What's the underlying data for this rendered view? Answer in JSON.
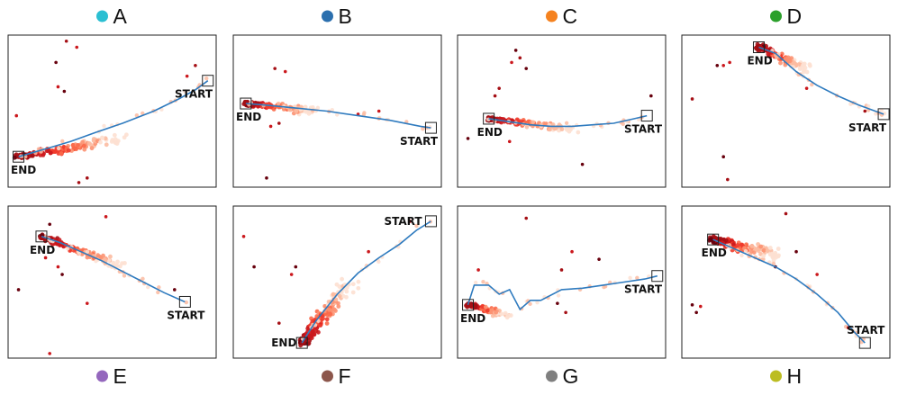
{
  "chart_data": [
    {
      "type": "scatter",
      "title": "A",
      "dot_color": "#2bbfd2",
      "start_label": "START",
      "end_label": "END",
      "xlim": [
        0,
        1
      ],
      "ylim": [
        0,
        1
      ],
      "path": {
        "color": "#2f7bbf",
        "x": [
          0.05,
          0.1,
          0.2,
          0.3,
          0.42,
          0.55,
          0.7,
          0.82,
          0.9,
          0.96
        ],
        "y": [
          0.2,
          0.22,
          0.26,
          0.3,
          0.36,
          0.42,
          0.5,
          0.58,
          0.64,
          0.7
        ]
      },
      "start": {
        "x": 0.96,
        "y": 0.7
      },
      "end": {
        "x": 0.05,
        "y": 0.2
      },
      "cluster": {
        "x1": 0.05,
        "y1": 0.2,
        "x2": 0.55,
        "y2": 0.32,
        "spread": 0.04,
        "count": 140
      },
      "outliers": [
        [
          0.28,
          0.96
        ],
        [
          0.33,
          0.92
        ],
        [
          0.23,
          0.82
        ],
        [
          0.24,
          0.66
        ],
        [
          0.27,
          0.63
        ],
        [
          0.04,
          0.47
        ],
        [
          0.34,
          0.03
        ],
        [
          0.38,
          0.06
        ],
        [
          0.86,
          0.73
        ],
        [
          0.9,
          0.8
        ]
      ]
    },
    {
      "type": "scatter",
      "title": "B",
      "dot_color": "#2b6fae",
      "start_label": "START",
      "end_label": "END",
      "xlim": [
        0,
        1
      ],
      "ylim": [
        0,
        1
      ],
      "path": {
        "color": "#2f7bbf",
        "x": [
          0.06,
          0.15,
          0.3,
          0.45,
          0.6,
          0.75,
          0.9,
          0.95
        ],
        "y": [
          0.55,
          0.54,
          0.52,
          0.5,
          0.47,
          0.44,
          0.4,
          0.39
        ]
      },
      "start": {
        "x": 0.95,
        "y": 0.39
      },
      "end": {
        "x": 0.06,
        "y": 0.55
      },
      "cluster": {
        "x1": 0.06,
        "y1": 0.55,
        "x2": 0.38,
        "y2": 0.5,
        "spread": 0.03,
        "count": 150
      },
      "outliers": [
        [
          0.2,
          0.78
        ],
        [
          0.25,
          0.76
        ],
        [
          0.18,
          0.4
        ],
        [
          0.22,
          0.42
        ],
        [
          0.16,
          0.06
        ],
        [
          0.7,
          0.5
        ],
        [
          0.6,
          0.48
        ]
      ]
    },
    {
      "type": "scatter",
      "title": "C",
      "dot_color": "#f5821f",
      "start_label": "START",
      "end_label": "END",
      "xlim": [
        0,
        1
      ],
      "ylim": [
        0,
        1
      ],
      "path": {
        "color": "#2f7bbf",
        "x": [
          0.15,
          0.25,
          0.35,
          0.45,
          0.55,
          0.65,
          0.75,
          0.85,
          0.91
        ],
        "y": [
          0.45,
          0.43,
          0.41,
          0.4,
          0.4,
          0.41,
          0.42,
          0.45,
          0.47
        ]
      },
      "start": {
        "x": 0.91,
        "y": 0.47
      },
      "end": {
        "x": 0.15,
        "y": 0.45
      },
      "cluster": {
        "x1": 0.15,
        "y1": 0.45,
        "x2": 0.55,
        "y2": 0.38,
        "spread": 0.03,
        "count": 140
      },
      "outliers": [
        [
          0.28,
          0.9
        ],
        [
          0.3,
          0.85
        ],
        [
          0.26,
          0.82
        ],
        [
          0.33,
          0.78
        ],
        [
          0.18,
          0.6
        ],
        [
          0.2,
          0.65
        ],
        [
          0.05,
          0.32
        ],
        [
          0.25,
          0.3
        ],
        [
          0.6,
          0.15
        ],
        [
          0.93,
          0.6
        ]
      ]
    },
    {
      "type": "scatter",
      "title": "D",
      "dot_color": "#2ca02c",
      "start_label": "START",
      "end_label": "END",
      "xlim": [
        0,
        1
      ],
      "ylim": [
        0,
        1
      ],
      "path": {
        "color": "#2f7bbf",
        "x": [
          0.37,
          0.45,
          0.55,
          0.65,
          0.75,
          0.85,
          0.93,
          0.97
        ],
        "y": [
          0.92,
          0.88,
          0.76,
          0.67,
          0.6,
          0.54,
          0.5,
          0.48
        ]
      },
      "start": {
        "x": 0.97,
        "y": 0.48
      },
      "end": {
        "x": 0.37,
        "y": 0.92
      },
      "cluster": {
        "x1": 0.37,
        "y1": 0.92,
        "x2": 0.6,
        "y2": 0.78,
        "spread": 0.04,
        "count": 150
      },
      "outliers": [
        [
          0.2,
          0.8
        ],
        [
          0.23,
          0.82
        ],
        [
          0.17,
          0.8
        ],
        [
          0.05,
          0.58
        ],
        [
          0.2,
          0.2
        ],
        [
          0.22,
          0.05
        ],
        [
          0.6,
          0.65
        ],
        [
          0.88,
          0.5
        ]
      ]
    },
    {
      "type": "scatter",
      "title": "E",
      "dot_color": "#9467bd",
      "start_label": "START",
      "end_label": "END",
      "xlim": [
        0,
        1
      ],
      "ylim": [
        0,
        1
      ],
      "path": {
        "color": "#2f7bbf",
        "x": [
          0.16,
          0.25,
          0.35,
          0.45,
          0.55,
          0.65,
          0.75,
          0.85,
          0.85
        ],
        "y": [
          0.8,
          0.76,
          0.7,
          0.64,
          0.57,
          0.5,
          0.43,
          0.37,
          0.37
        ]
      },
      "start": {
        "x": 0.85,
        "y": 0.37
      },
      "end": {
        "x": 0.16,
        "y": 0.8
      },
      "cluster": {
        "x1": 0.16,
        "y1": 0.8,
        "x2": 0.55,
        "y2": 0.6,
        "spread": 0.03,
        "count": 150
      },
      "outliers": [
        [
          0.47,
          0.93
        ],
        [
          0.2,
          0.88
        ],
        [
          0.18,
          0.66
        ],
        [
          0.24,
          0.6
        ],
        [
          0.05,
          0.45
        ],
        [
          0.26,
          0.55
        ],
        [
          0.2,
          0.03
        ],
        [
          0.38,
          0.36
        ],
        [
          0.8,
          0.45
        ]
      ]
    },
    {
      "type": "scatter",
      "title": "F",
      "dot_color": "#8c564b",
      "start_label": "START",
      "end_label": "END",
      "xlim": [
        0,
        1
      ],
      "ylim": [
        0,
        1
      ],
      "path": {
        "color": "#2f7bbf",
        "x": [
          0.33,
          0.4,
          0.5,
          0.6,
          0.7,
          0.8,
          0.88,
          0.95
        ],
        "y": [
          0.1,
          0.25,
          0.42,
          0.56,
          0.66,
          0.75,
          0.84,
          0.9
        ]
      },
      "start": {
        "x": 0.95,
        "y": 0.9
      },
      "end": {
        "x": 0.33,
        "y": 0.1
      },
      "cluster": {
        "x1": 0.33,
        "y1": 0.1,
        "x2": 0.55,
        "y2": 0.48,
        "spread": 0.05,
        "count": 170
      },
      "outliers": [
        [
          0.05,
          0.8
        ],
        [
          0.22,
          0.23
        ],
        [
          0.28,
          0.55
        ],
        [
          0.3,
          0.6
        ],
        [
          0.85,
          0.9
        ],
        [
          0.65,
          0.7
        ],
        [
          0.1,
          0.6
        ]
      ]
    },
    {
      "type": "scatter",
      "title": "G",
      "dot_color": "#7f7f7f",
      "start_label": "START",
      "end_label": "END",
      "xlim": [
        0,
        1
      ],
      "ylim": [
        0,
        1
      ],
      "path": {
        "color": "#2f7bbf",
        "x": [
          0.05,
          0.08,
          0.15,
          0.2,
          0.25,
          0.3,
          0.35,
          0.4,
          0.5,
          0.6,
          0.7,
          0.8,
          0.9,
          0.96
        ],
        "y": [
          0.35,
          0.48,
          0.48,
          0.42,
          0.45,
          0.32,
          0.38,
          0.38,
          0.45,
          0.46,
          0.48,
          0.5,
          0.52,
          0.54
        ]
      },
      "start": {
        "x": 0.96,
        "y": 0.54
      },
      "end": {
        "x": 0.05,
        "y": 0.35
      },
      "cluster": {
        "x1": 0.05,
        "y1": 0.35,
        "x2": 0.25,
        "y2": 0.28,
        "spread": 0.03,
        "count": 90
      },
      "outliers": [
        [
          0.33,
          0.92
        ],
        [
          0.5,
          0.58
        ],
        [
          0.55,
          0.7
        ],
        [
          0.48,
          0.36
        ],
        [
          0.52,
          0.3
        ],
        [
          0.68,
          0.65
        ],
        [
          0.1,
          0.58
        ]
      ]
    },
    {
      "type": "scatter",
      "title": "H",
      "dot_color": "#bcbd22",
      "start_label": "START",
      "end_label": "END",
      "xlim": [
        0,
        1
      ],
      "ylim": [
        0,
        1
      ],
      "path": {
        "color": "#2f7bbf",
        "x": [
          0.15,
          0.25,
          0.35,
          0.45,
          0.55,
          0.65,
          0.75,
          0.83,
          0.88
        ],
        "y": [
          0.78,
          0.72,
          0.66,
          0.6,
          0.52,
          0.42,
          0.3,
          0.17,
          0.1
        ]
      },
      "start": {
        "x": 0.88,
        "y": 0.1
      },
      "end": {
        "x": 0.15,
        "y": 0.78
      },
      "cluster": {
        "x1": 0.15,
        "y1": 0.78,
        "x2": 0.45,
        "y2": 0.68,
        "spread": 0.05,
        "count": 170
      },
      "outliers": [
        [
          0.05,
          0.35
        ],
        [
          0.07,
          0.3
        ],
        [
          0.09,
          0.34
        ],
        [
          0.45,
          0.6
        ],
        [
          0.55,
          0.7
        ],
        [
          0.65,
          0.55
        ],
        [
          0.8,
          0.2
        ],
        [
          0.5,
          0.95
        ]
      ]
    }
  ]
}
